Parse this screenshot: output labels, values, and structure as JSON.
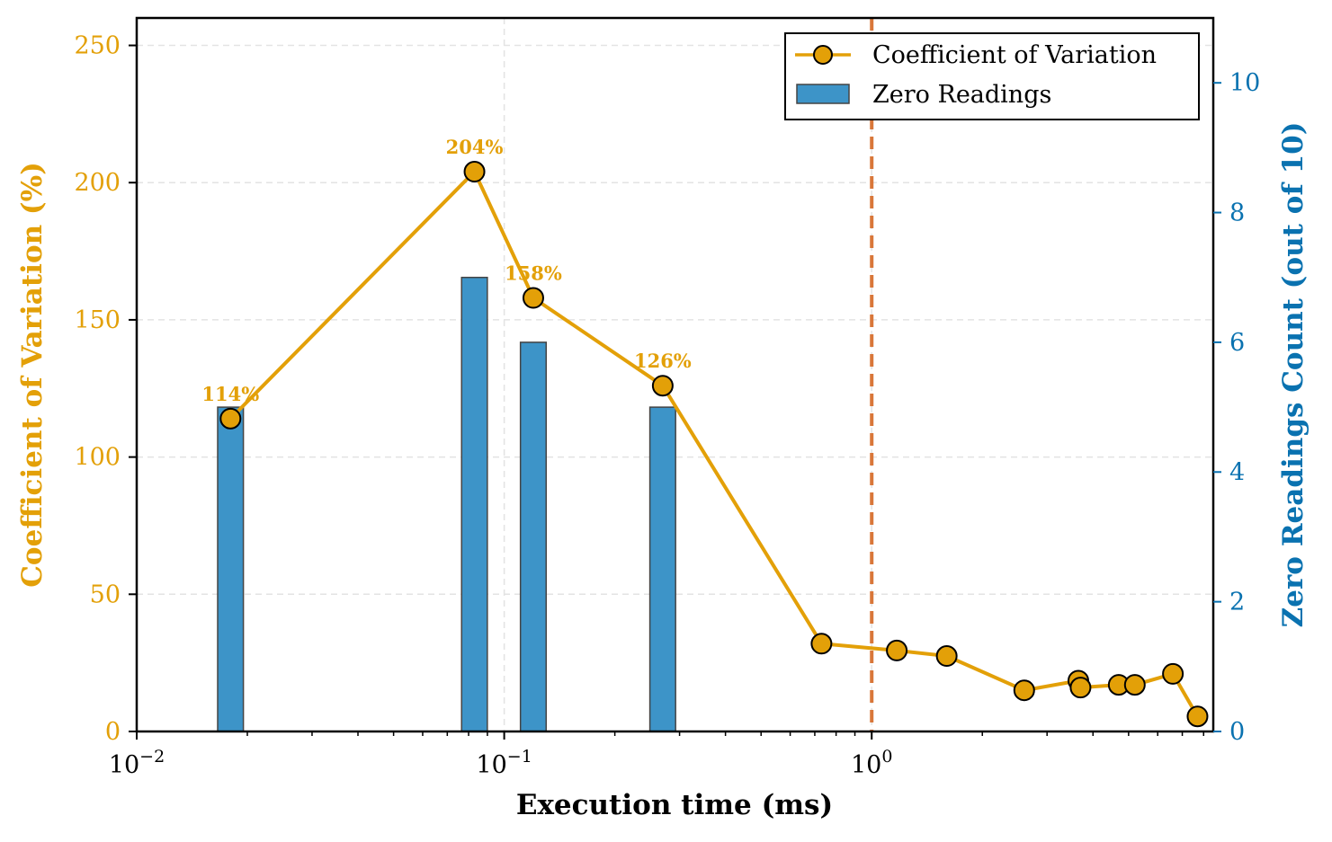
{
  "chart_data": {
    "type": "line+bar",
    "xlabel": "Execution time (ms)",
    "ylabel_left": "Coefficient of Variation (%)",
    "ylabel_right": "Zero Readings Count (out of 10)",
    "x_scale": "log",
    "xlim": [
      0.01,
      8.5
    ],
    "ylim_left": [
      0,
      260
    ],
    "ylim_right": [
      0,
      11
    ],
    "x_ticks": [
      {
        "value": 0.01,
        "base": "10",
        "exp": "−2"
      },
      {
        "value": 0.1,
        "base": "10",
        "exp": "−1"
      },
      {
        "value": 1,
        "base": "10",
        "exp": "0"
      }
    ],
    "y_ticks_left": [
      0,
      50,
      100,
      150,
      200,
      250
    ],
    "y_ticks_right": [
      0,
      2,
      4,
      6,
      8,
      10
    ],
    "grid": true,
    "legend_position": "top-right",
    "threshold_line": {
      "x": 1,
      "color": "#d9773a",
      "style": "dashed"
    },
    "colors": {
      "cv": "#e3a008",
      "bars": "#3d94c8",
      "right_axis": "#0a72b0"
    },
    "series": [
      {
        "name": "Coefficient of Variation",
        "kind": "line",
        "axis": "left",
        "points": [
          {
            "x": 0.018,
            "y": 114,
            "label": "114%"
          },
          {
            "x": 0.083,
            "y": 204,
            "label": "204%"
          },
          {
            "x": 0.12,
            "y": 158,
            "label": "158%"
          },
          {
            "x": 0.27,
            "y": 126,
            "label": "126%"
          },
          {
            "x": 0.73,
            "y": 32
          },
          {
            "x": 1.17,
            "y": 29.5
          },
          {
            "x": 1.6,
            "y": 27.5
          },
          {
            "x": 2.6,
            "y": 15
          },
          {
            "x": 3.65,
            "y": 18.5
          },
          {
            "x": 3.7,
            "y": 16
          },
          {
            "x": 4.7,
            "y": 17
          },
          {
            "x": 5.2,
            "y": 17
          },
          {
            "x": 6.6,
            "y": 21
          },
          {
            "x": 7.7,
            "y": 5.5
          }
        ]
      },
      {
        "name": "Zero Readings",
        "kind": "bar",
        "axis": "right",
        "points": [
          {
            "x": 0.018,
            "y": 5
          },
          {
            "x": 0.083,
            "y": 7
          },
          {
            "x": 0.12,
            "y": 6
          },
          {
            "x": 0.27,
            "y": 5
          }
        ]
      }
    ]
  }
}
